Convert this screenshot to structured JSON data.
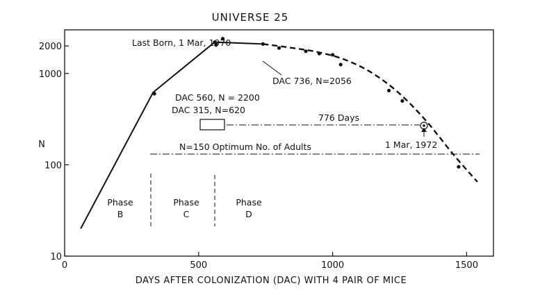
{
  "chart_data": {
    "type": "line",
    "title": "UNIVERSE 25",
    "xlabel": "DAYS AFTER COLONIZATION (DAC) WITH 4 PAIR OF MICE",
    "ylabel": "N",
    "xlim": [
      0,
      1600
    ],
    "ylim": [
      10,
      3000
    ],
    "y_scale": "log",
    "grid": false,
    "x_ticks": [
      {
        "value": 0,
        "label": "0"
      },
      {
        "value": 500,
        "label": "500"
      },
      {
        "value": 1000,
        "label": "1000"
      },
      {
        "value": 1500,
        "label": "1500"
      }
    ],
    "y_ticks": [
      {
        "value": 10,
        "label": "10"
      },
      {
        "value": 100,
        "label": "100"
      },
      {
        "value": 1000,
        "label": "1000"
      },
      {
        "value": 2000,
        "label": "2000"
      }
    ],
    "series": [
      {
        "style": "solid",
        "x": [
          60,
          330,
          560,
          740
        ],
        "y": [
          20,
          620,
          2200,
          2100
        ]
      },
      {
        "style": "dashed",
        "x": [
          740,
          850,
          950,
          1050,
          1150,
          1250,
          1350,
          1450,
          1540
        ],
        "y": [
          2100,
          1900,
          1700,
          1400,
          1000,
          600,
          300,
          130,
          65
        ]
      }
    ],
    "points": {
      "x": [
        335,
        560,
        565,
        590,
        740,
        800,
        900,
        950,
        1000,
        1030,
        1210,
        1260,
        1470
      ],
      "y": [
        600,
        2200,
        2050,
        2400,
        2100,
        1900,
        1750,
        1650,
        1600,
        1250,
        650,
        500,
        95
      ]
    },
    "annotations": {
      "last_born": "Last Born, 1 Mar, 1970",
      "dac736": "DAC 736, N=2056",
      "dac560": "DAC 560, N = 2200",
      "dac315": "DAC 315, N=620",
      "days776": "776 Days",
      "mar1972": "1 Mar, 1972",
      "optimum": "N=150  Optimum No. of Adults"
    },
    "phases": [
      {
        "line1": "Phase",
        "line2": "B"
      },
      {
        "line1": "Phase",
        "line2": "C"
      },
      {
        "line1": "Phase",
        "line2": "D"
      }
    ]
  }
}
